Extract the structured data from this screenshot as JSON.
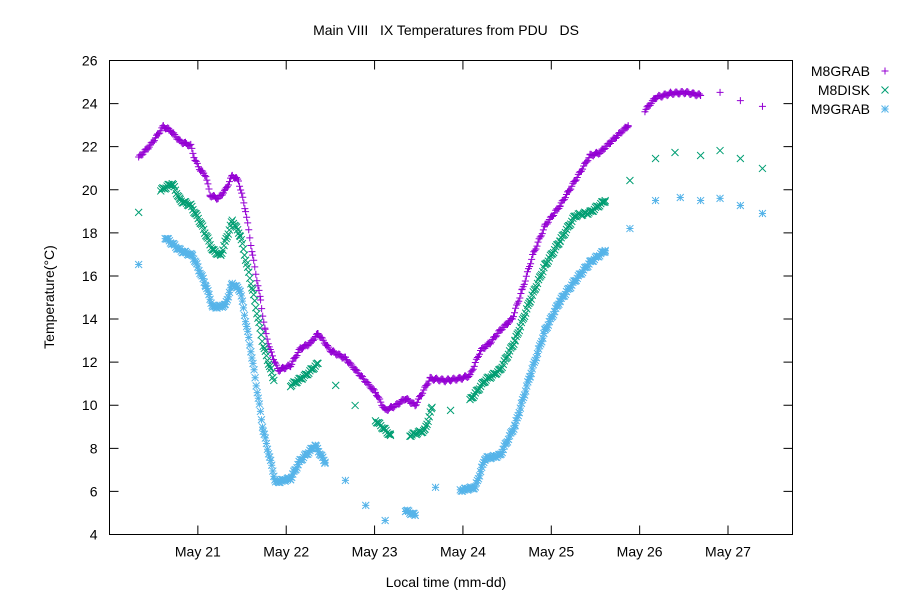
{
  "chart_data": {
    "type": "scatter",
    "title": "Main VIII   IX Temperatures from PDU   DS",
    "xlabel": "Local time (mm-dd)",
    "ylabel": "Temperature(°C)",
    "x_units": "days since May 20 00:00",
    "xlim": [
      0,
      7.73
    ],
    "ylim": [
      4,
      26
    ],
    "yticks": [
      4,
      6,
      8,
      10,
      12,
      14,
      16,
      18,
      20,
      22,
      24,
      26
    ],
    "xticks": [
      {
        "value": 1,
        "label": "May 21"
      },
      {
        "value": 2,
        "label": "May 22"
      },
      {
        "value": 3,
        "label": "May 23"
      },
      {
        "value": 4,
        "label": "May 24"
      },
      {
        "value": 5,
        "label": "May 25"
      },
      {
        "value": 6,
        "label": "May 26"
      },
      {
        "value": 7,
        "label": "May 27"
      }
    ],
    "grid": false,
    "legend_position": "top-right-outside",
    "series": [
      {
        "name": "M8GRAB",
        "marker": "plus",
        "color": "#9400d3",
        "x": [
          0.33,
          0.46,
          0.61,
          0.69,
          0.8,
          0.92,
          0.97,
          1.03,
          1.09,
          1.14,
          1.23,
          1.31,
          1.39,
          1.46,
          1.54,
          1.62,
          1.71,
          1.76,
          1.82,
          1.91,
          2.05,
          2.16,
          2.27,
          2.36,
          2.5,
          2.67,
          2.84,
          3.01,
          3.12,
          3.24,
          3.35,
          3.46,
          3.63,
          3.8,
          3.97,
          4.08,
          4.2,
          4.31,
          4.42,
          4.56,
          4.67,
          4.79,
          4.93,
          5.1,
          5.27,
          5.44,
          5.55,
          5.69,
          5.87,
          6.06,
          6.18,
          6.35,
          6.52,
          6.69,
          6.91,
          7.14,
          7.39
        ],
        "y": [
          21.5,
          22.05,
          22.94,
          22.75,
          22.24,
          22.05,
          21.36,
          20.9,
          20.66,
          19.74,
          19.6,
          19.97,
          20.66,
          20.43,
          19.04,
          16.95,
          14.86,
          13.47,
          12.54,
          11.62,
          11.85,
          12.63,
          12.87,
          13.33,
          12.54,
          12.17,
          11.38,
          10.6,
          9.76,
          9.99,
          10.32,
          9.99,
          11.24,
          11.15,
          11.24,
          11.38,
          12.54,
          12.91,
          13.47,
          14.03,
          15.33,
          16.95,
          18.34,
          19.27,
          20.43,
          21.59,
          21.73,
          22.29,
          22.98,
          23.68,
          24.28,
          24.47,
          24.52,
          24.38,
          24.52,
          24.14,
          23.87
        ]
      },
      {
        "name": "M8DISK",
        "marker": "cross",
        "color": "#009e73",
        "x": [
          0.33,
          0.58,
          0.71,
          0.8,
          0.92,
          1.03,
          1.17,
          1.26,
          1.39,
          1.48,
          1.62,
          1.74,
          1.86,
          2.05,
          2.22,
          2.36,
          2.56,
          2.78,
          3.01,
          3.18,
          3.4,
          3.57,
          3.65,
          3.86,
          4.08,
          4.25,
          4.42,
          4.59,
          4.76,
          4.93,
          5.1,
          5.27,
          5.44,
          5.61,
          5.89,
          6.18,
          6.4,
          6.69,
          6.91,
          7.14,
          7.39
        ],
        "y": [
          18.95,
          19.97,
          20.3,
          19.5,
          19.27,
          18.48,
          17.18,
          16.95,
          18.58,
          17.88,
          15.33,
          12.77,
          11.15,
          10.92,
          11.38,
          11.94,
          10.92,
          9.99,
          9.3,
          8.6,
          8.6,
          8.83,
          9.9,
          9.76,
          10.22,
          11.15,
          11.62,
          13.0,
          14.86,
          16.49,
          17.65,
          18.8,
          18.95,
          19.5,
          20.43,
          21.45,
          21.73,
          21.59,
          21.82,
          21.45,
          20.99
        ]
      },
      {
        "name": "M9GRAB",
        "marker": "star",
        "color": "#56b4e9",
        "x": [
          0.33,
          0.63,
          0.8,
          0.94,
          1.09,
          1.17,
          1.31,
          1.39,
          1.48,
          1.6,
          1.74,
          1.88,
          2.05,
          2.16,
          2.33,
          2.44,
          2.67,
          2.9,
          3.12,
          3.35,
          3.46,
          3.69,
          3.97,
          4.14,
          4.25,
          4.42,
          4.59,
          4.76,
          4.93,
          5.1,
          5.27,
          5.44,
          5.61,
          5.89,
          6.18,
          6.46,
          6.69,
          6.91,
          7.14,
          7.39
        ],
        "y": [
          16.53,
          17.79,
          17.18,
          16.95,
          15.56,
          14.54,
          14.63,
          15.65,
          15.33,
          12.54,
          8.83,
          6.42,
          6.6,
          7.44,
          8.13,
          7.35,
          6.51,
          5.35,
          4.65,
          5.12,
          4.89,
          6.19,
          6.05,
          6.19,
          7.53,
          7.67,
          9.06,
          11.38,
          13.47,
          14.86,
          15.79,
          16.63,
          17.18,
          18.2,
          19.5,
          19.64,
          19.5,
          19.6,
          19.27,
          18.9
        ]
      }
    ]
  }
}
